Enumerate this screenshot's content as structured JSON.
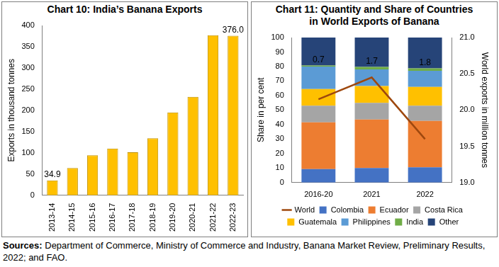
{
  "chart_data": [
    {
      "type": "bar",
      "title": "Chart 10: India’s Banana Exports",
      "y_label": "Exports in thousand tonnes",
      "categories": [
        "2013-14",
        "2014-15",
        "2015-16",
        "2016-17",
        "2017-18",
        "2018-19",
        "2019-20",
        "2020-21",
        "2021-22",
        "2022-23"
      ],
      "values": [
        34.9,
        64,
        94,
        110,
        101,
        134,
        195,
        232,
        377,
        376.0
      ],
      "value_labels": [
        "34.9",
        null,
        null,
        null,
        null,
        null,
        null,
        null,
        null,
        "376.0"
      ],
      "data_labels": true,
      "color": "#ffc000",
      "ylim": [
        0,
        400
      ],
      "yticks": [
        0,
        50,
        100,
        150,
        200,
        250,
        300,
        350,
        400
      ],
      "grid": false,
      "legend": false
    },
    {
      "type": "bar",
      "title": [
        "Chart 11: Quantity and Share of Countries",
        "in World Exports of Banana"
      ],
      "y_label": "Share in per cent",
      "y2_label": "World exports in million tonnes",
      "categories": [
        "2016-20",
        "2021",
        "2022"
      ],
      "stacked": true,
      "series": [
        {
          "name": "Colombia",
          "color": "#4472c4",
          "values": [
            9.3,
            10,
            10.5
          ]
        },
        {
          "name": "Ecuador",
          "color": "#ed7d31",
          "values": [
            32.2,
            33.5,
            32
          ]
        },
        {
          "name": "Costa Rica",
          "color": "#a5a5a5",
          "values": [
            11.5,
            11.5,
            10.5
          ]
        },
        {
          "name": "Guatemala",
          "color": "#ffc000",
          "values": [
            11.5,
            11.5,
            13
          ]
        },
        {
          "name": "Philippines",
          "color": "#5b9bd5",
          "values": [
            15.5,
            11.5,
            11
          ]
        },
        {
          "name": "India",
          "color": "#70ad47",
          "values": [
            0.7,
            1.7,
            1.8
          ],
          "data_labels": true
        },
        {
          "name": "Other",
          "color": "#264478",
          "values": [
            19.3,
            20.3,
            21.2
          ]
        },
        {
          "name": "World",
          "color": "#9e480e",
          "values": [
            20.15,
            20.45,
            19.6
          ],
          "type": "line",
          "axis": "y2",
          "line_style": "solid",
          "marker": "none"
        }
      ],
      "ylim": [
        0,
        100
      ],
      "yticks": [
        0,
        10,
        20,
        30,
        40,
        50,
        60,
        70,
        80,
        90,
        100
      ],
      "y2lim": [
        19.0,
        21.0
      ],
      "y2ticks": [
        {
          "value": 19.0,
          "label": "19.0"
        },
        {
          "value": 19.5,
          "label": "19.5"
        },
        {
          "value": 20.0,
          "label": "20.0"
        },
        {
          "value": 20.5,
          "label": "20.5"
        },
        {
          "value": 21.0,
          "label": "21.0"
        }
      ],
      "grid": false,
      "legend": "bottom"
    }
  ],
  "source": {
    "label": "Sources:",
    "text": "Department of Commerce, Ministry of Commerce and Industry, Banana Market Review, Preliminary Results, 2022; and FAO."
  }
}
